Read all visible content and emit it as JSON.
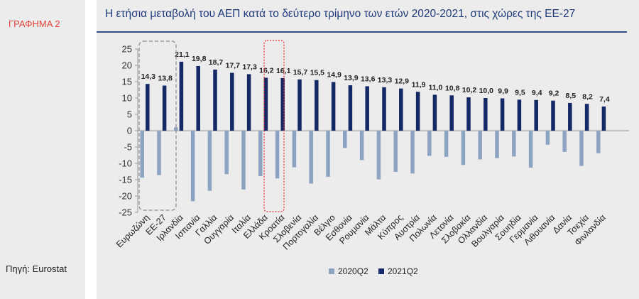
{
  "sidebar": {
    "graph_label": "ΓΡΑΦΗΜΑ 2",
    "source": "Πηγή: Eurostat"
  },
  "colors": {
    "series_2020": "#8da3c2",
    "series_2021": "#142866",
    "highlight_box": "#e33",
    "ea_box": "#888888",
    "title": "#1f3a7a"
  },
  "chart_data": {
    "type": "bar",
    "title": "Η ετήσια μεταβολή του ΑΕΠ κατά το δεύτερο τρίμηνο των ετών 2020-2021, στις χώρες της ΕΕ-27",
    "xlabel": "",
    "ylabel": "",
    "ylim": [
      -25,
      25
    ],
    "yticks": [
      "25",
      "20",
      "15",
      "10",
      "5",
      "0",
      "-5",
      "-10",
      "-15",
      "-20",
      "-25"
    ],
    "grid": false,
    "legend_position": "bottom",
    "categories": [
      "Ευρωζώνη",
      "ΕΕ-27",
      "Ιρλανδία",
      "Ισπανία",
      "Γαλλία",
      "Ουγγαρία",
      "Ιταλία",
      "Ελλάδα",
      "Κροατία",
      "Σλοβενία",
      "Πορτογαλία",
      "Βέλγιο",
      "Εσθονία",
      "Ρουμανία",
      "Μάλτα",
      "Κύπρος",
      "Αυστρία",
      "Πολωνία",
      "Λετονία",
      "Σλοβακία",
      "Ολλανδία",
      "Βουλγαρία",
      "Σουηδία",
      "Γερμανία",
      "Λιθουανία",
      "Δανία",
      "Τσεχία",
      "Φινλανδία"
    ],
    "series": [
      {
        "name": "2020Q2",
        "values": [
          -14.4,
          -13.6,
          1.0,
          -21.6,
          -18.4,
          -13.3,
          -18.0,
          -13.9,
          -14.6,
          -11.2,
          -16.2,
          -14.1,
          -5.3,
          -9.0,
          -14.9,
          -12.6,
          -13.1,
          -7.7,
          -8.0,
          -10.5,
          -8.8,
          -8.4,
          -7.9,
          -11.3,
          -4.3,
          -6.5,
          -10.8,
          -6.9
        ]
      },
      {
        "name": "2021Q2",
        "values": [
          14.3,
          13.8,
          21.1,
          19.8,
          18.7,
          17.7,
          17.3,
          16.2,
          16.1,
          15.7,
          15.5,
          14.9,
          13.9,
          13.6,
          13.3,
          12.9,
          11.9,
          11.0,
          10.8,
          10.2,
          10.0,
          9.9,
          9.5,
          9.4,
          9.2,
          8.5,
          8.2,
          7.4
        ],
        "labels": [
          "14,3",
          "13,8",
          "21,1",
          "19,8",
          "18,7",
          "17,7",
          "17,3",
          "16,2",
          "16,1",
          "15,7",
          "15,5",
          "14,9",
          "13,9",
          "13,6",
          "13,3",
          "12,9",
          "11,9",
          "11,0",
          "10,8",
          "10,2",
          "10,0",
          "9,9",
          "9,5",
          "9,4",
          "9,2",
          "8,5",
          "8,2",
          "7,4"
        ]
      }
    ],
    "highlight_groups": [
      {
        "name": "euro-area-eu27",
        "categories": [
          "Ευρωζώνη",
          "ΕΕ-27"
        ],
        "style": "dashed-gray"
      },
      {
        "name": "greece",
        "categories": [
          "Ελλάδα"
        ],
        "style": "dotted-red"
      }
    ]
  }
}
